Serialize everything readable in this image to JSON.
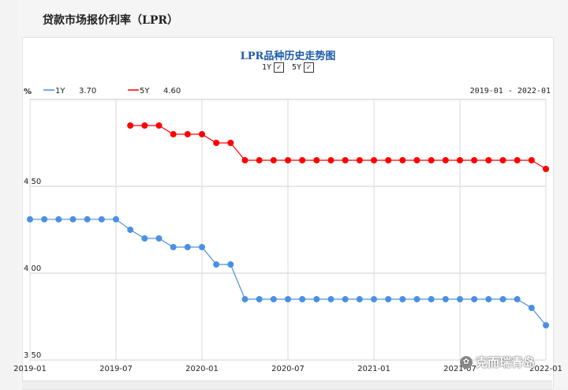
{
  "page": {
    "title": "贷款市场报价利率（LPR）"
  },
  "toggles": [
    {
      "label": "1Y",
      "checked": true
    },
    {
      "label": "5Y",
      "checked": true
    }
  ],
  "watermark": {
    "text": "克而瑞青岛"
  },
  "chart_data": {
    "type": "line",
    "title": "LPR品种历史走势图",
    "ylabel": "%",
    "date_range": "2019-01 - 2022-01",
    "ylim": [
      3.5,
      5.0
    ],
    "yticks": [
      "3.50",
      "4.00",
      "4.50"
    ],
    "xticks": [
      "2019-01",
      "2019-07",
      "2020-01",
      "2020-07",
      "2021-01",
      "2021-07",
      "2022-01"
    ],
    "xlim": [
      "2019-01",
      "2022-01"
    ],
    "colors": {
      "1Y": "#4a90e2",
      "5Y": "#ff0000"
    },
    "series": [
      {
        "name": "1Y",
        "latest": "3.70",
        "x": [
          "2019-01",
          "2019-02",
          "2019-03",
          "2019-04",
          "2019-05",
          "2019-06",
          "2019-07",
          "2019-08",
          "2019-09",
          "2019-10",
          "2019-11",
          "2019-12",
          "2020-01",
          "2020-02",
          "2020-03",
          "2020-04",
          "2020-05",
          "2020-06",
          "2020-07",
          "2020-08",
          "2020-09",
          "2020-10",
          "2020-11",
          "2020-12",
          "2021-01",
          "2021-02",
          "2021-03",
          "2021-04",
          "2021-05",
          "2021-06",
          "2021-07",
          "2021-08",
          "2021-09",
          "2021-10",
          "2021-11",
          "2021-12",
          "2022-01"
        ],
        "values": [
          4.31,
          4.31,
          4.31,
          4.31,
          4.31,
          4.31,
          4.31,
          4.25,
          4.2,
          4.2,
          4.15,
          4.15,
          4.15,
          4.05,
          4.05,
          3.85,
          3.85,
          3.85,
          3.85,
          3.85,
          3.85,
          3.85,
          3.85,
          3.85,
          3.85,
          3.85,
          3.85,
          3.85,
          3.85,
          3.85,
          3.85,
          3.85,
          3.85,
          3.85,
          3.85,
          3.8,
          3.7
        ]
      },
      {
        "name": "5Y",
        "latest": "4.60",
        "x": [
          "2019-08",
          "2019-09",
          "2019-10",
          "2019-11",
          "2019-12",
          "2020-01",
          "2020-02",
          "2020-03",
          "2020-04",
          "2020-05",
          "2020-06",
          "2020-07",
          "2020-08",
          "2020-09",
          "2020-10",
          "2020-11",
          "2020-12",
          "2021-01",
          "2021-02",
          "2021-03",
          "2021-04",
          "2021-05",
          "2021-06",
          "2021-07",
          "2021-08",
          "2021-09",
          "2021-10",
          "2021-11",
          "2021-12",
          "2022-01"
        ],
        "values": [
          4.85,
          4.85,
          4.85,
          4.8,
          4.8,
          4.8,
          4.75,
          4.75,
          4.65,
          4.65,
          4.65,
          4.65,
          4.65,
          4.65,
          4.65,
          4.65,
          4.65,
          4.65,
          4.65,
          4.65,
          4.65,
          4.65,
          4.65,
          4.65,
          4.65,
          4.65,
          4.65,
          4.65,
          4.65,
          4.6
        ]
      }
    ]
  }
}
